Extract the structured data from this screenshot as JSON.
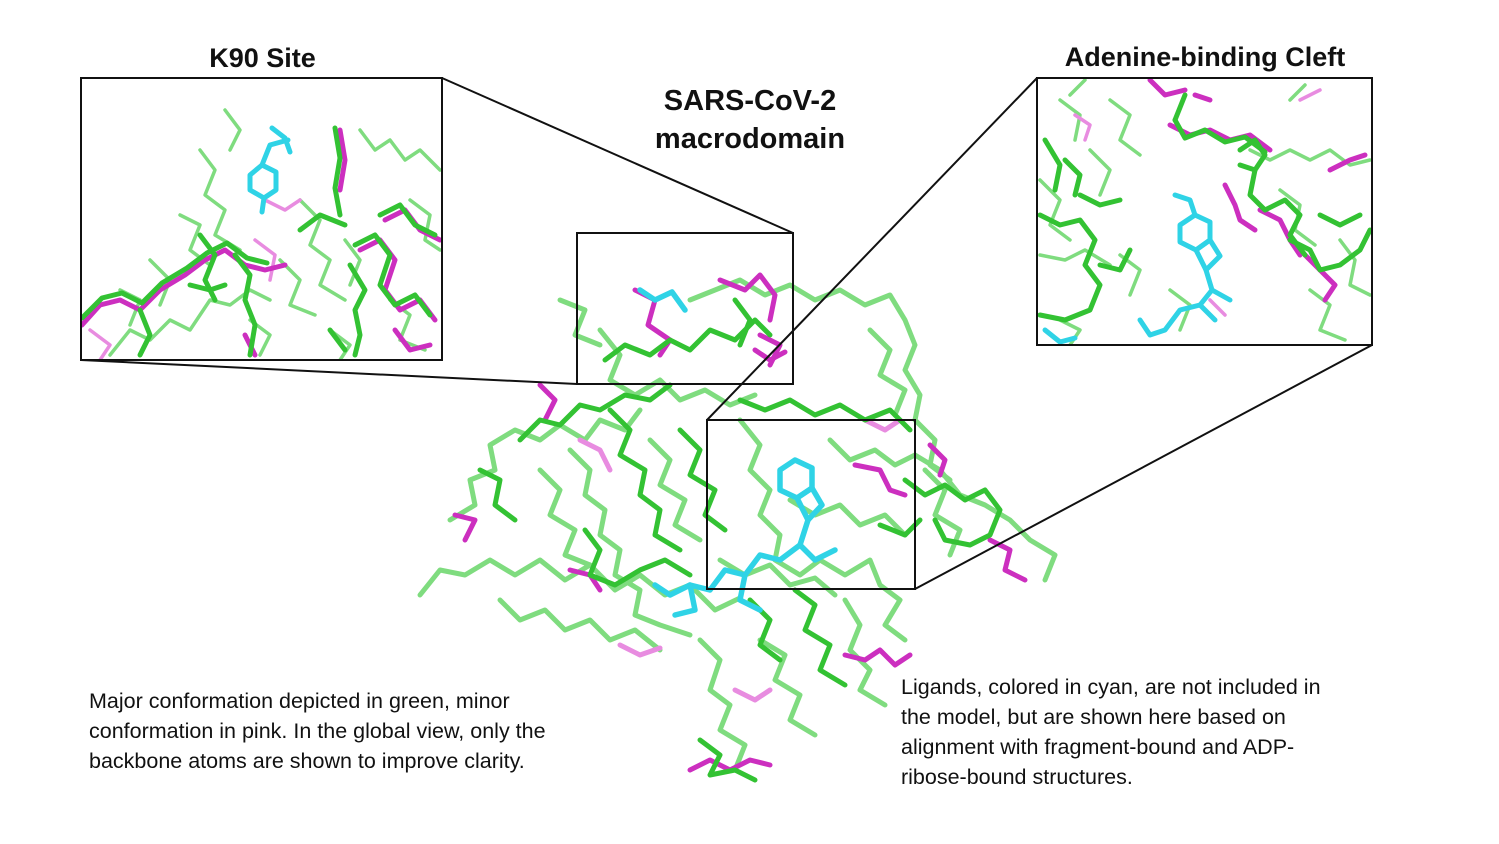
{
  "panels": {
    "k90_site": {
      "title": "K90 Site"
    },
    "adenine_cleft": {
      "title": "Adenine-binding Cleft"
    }
  },
  "main": {
    "title_line1": "SARS-CoV-2",
    "title_line2": "macrodomain"
  },
  "captions": {
    "left": {
      "line1": "Major conformation depicted in green, minor",
      "line2": "conformation in pink. In the global view, only the",
      "line3": "backbone atoms are shown to improve clarity."
    },
    "right": {
      "line1": "Ligands, colored in cyan, are not included in",
      "line2": "the model, but are shown here based on",
      "line3": "alignment with fragment-bound and ADP-",
      "line4": "ribose-bound structures."
    }
  },
  "colors": {
    "major_conformation": "#33c233",
    "major_light": "#7fdc7f",
    "minor_conformation": "#cc2fbf",
    "minor_light": "#e88ce0",
    "ligand": "#2fd3e6",
    "frame": "#111111"
  }
}
